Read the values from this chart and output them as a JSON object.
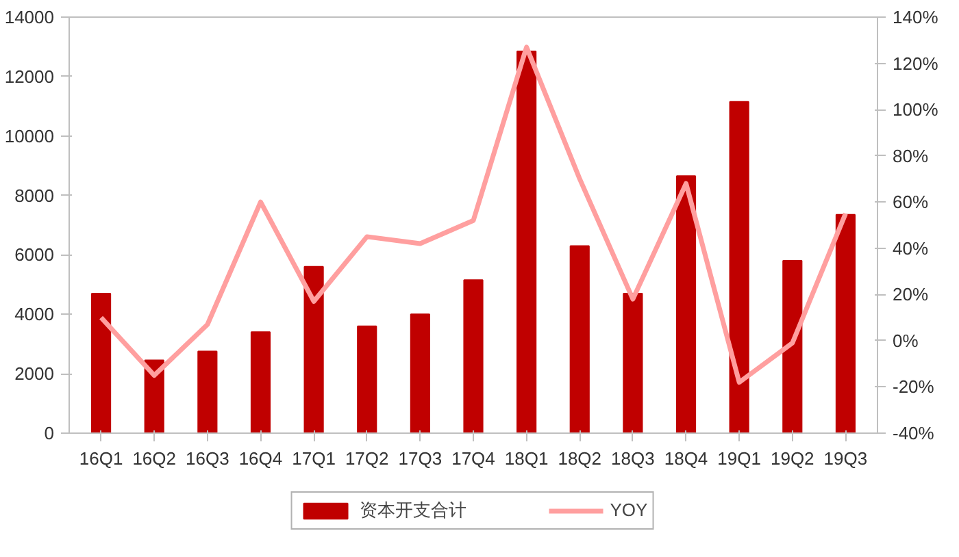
{
  "chart_data": {
    "type": "bar",
    "categories": [
      "16Q1",
      "16Q2",
      "16Q3",
      "16Q4",
      "17Q1",
      "17Q2",
      "17Q3",
      "17Q4",
      "18Q1",
      "18Q2",
      "18Q3",
      "18Q4",
      "19Q1",
      "19Q2",
      "19Q3"
    ],
    "series": [
      {
        "name": "资本开支合计",
        "color": "#c00000",
        "values": [
          4700,
          2450,
          2750,
          3400,
          5600,
          3600,
          4000,
          5150,
          12850,
          6300,
          4700,
          8650,
          11150,
          5800,
          7350
        ]
      },
      {
        "name": "YOY",
        "type": "line",
        "axis": "y2",
        "color": "#ff9f9f",
        "values": [
          10,
          -15,
          7,
          60,
          17,
          45,
          42,
          52,
          127,
          70,
          18,
          68,
          -18,
          -1,
          55
        ]
      }
    ],
    "ylim": [
      0,
      14000
    ],
    "yticks": [
      0,
      2000,
      4000,
      6000,
      8000,
      10000,
      12000,
      14000
    ],
    "y2lim": [
      -40,
      140
    ],
    "y2ticks": [
      {
        "value": -40,
        "label": "-40%"
      },
      {
        "value": -20,
        "label": "-20%"
      },
      {
        "value": 0,
        "label": "0%"
      },
      {
        "value": 20,
        "label": "20%"
      },
      {
        "value": 40,
        "label": "40%"
      },
      {
        "value": 60,
        "label": "60%"
      },
      {
        "value": 80,
        "label": "80%"
      },
      {
        "value": 100,
        "label": "100%"
      },
      {
        "value": 120,
        "label": "120%"
      },
      {
        "value": 140,
        "label": "140%"
      }
    ],
    "grid": false,
    "legend": "bottom"
  }
}
